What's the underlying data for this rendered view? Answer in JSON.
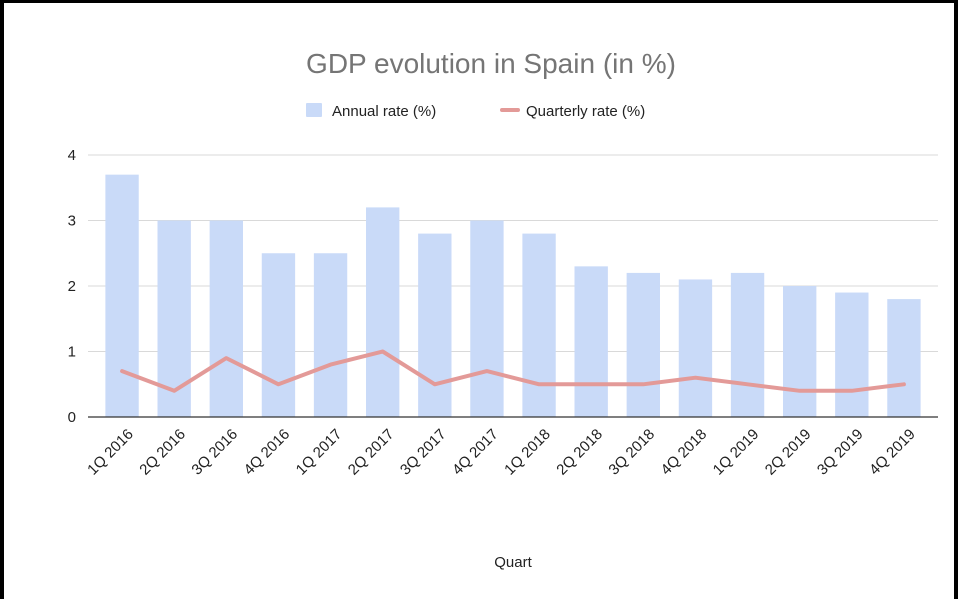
{
  "chart_data": {
    "type": "bar",
    "title": "GDP evolution in Spain (in %)",
    "xlabel": "Quart",
    "ylabel": "",
    "ylim": [
      0,
      4
    ],
    "yticks": [
      "0",
      "1",
      "2",
      "3",
      "4"
    ],
    "grid": true,
    "legend_position": "top",
    "categories": [
      "1Q 2016",
      "2Q 2016",
      "3Q 2016",
      "4Q 2016",
      "1Q 2017",
      "2Q 2017",
      "3Q 2017",
      "4Q 2017",
      "1Q 2018",
      "2Q 2018",
      "3Q 2018",
      "4Q 2018",
      "1Q 2019",
      "2Q 2019",
      "3Q 2019",
      "4Q 2019"
    ],
    "series": [
      {
        "name": "Annual rate (%)",
        "type": "bar",
        "color": "#c9daf8",
        "values": [
          3.7,
          3.0,
          3.0,
          2.5,
          2.5,
          3.2,
          2.8,
          3.0,
          2.8,
          2.3,
          2.2,
          2.1,
          2.2,
          2.0,
          1.9,
          1.8
        ]
      },
      {
        "name": "Quarterly rate (%)",
        "type": "line",
        "color": "#e39a98",
        "values": [
          0.7,
          0.4,
          0.9,
          0.5,
          0.8,
          1.0,
          0.5,
          0.7,
          0.5,
          0.5,
          0.5,
          0.6,
          0.5,
          0.4,
          0.4,
          0.5
        ]
      }
    ]
  }
}
